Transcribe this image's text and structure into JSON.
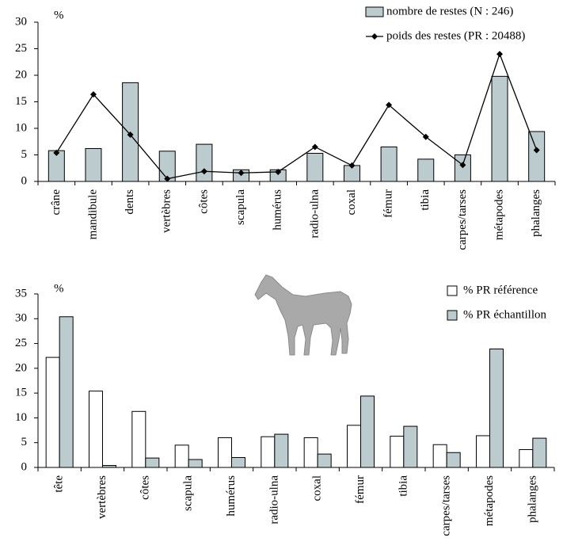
{
  "chart_data": [
    {
      "type": "combo",
      "unit": "%",
      "categories": [
        "crâne",
        "mandibule",
        "dents",
        "vertèbres",
        "côtes",
        "scapula",
        "humérus",
        "radio-ulna",
        "coxal",
        "fémur",
        "tibia",
        "carpes/tarses",
        "métapodes",
        "phalanges"
      ],
      "series": [
        {
          "name": "nombre de restes (N : 246)",
          "kind": "bar",
          "color": "#bccbce",
          "values": [
            5.8,
            6.2,
            18.6,
            5.7,
            7,
            2.2,
            2.2,
            5.3,
            3,
            6.5,
            4.2,
            5,
            19.8,
            9.4
          ]
        },
        {
          "name": "poids des restes (PR : 20488)",
          "kind": "line",
          "color": "#000000",
          "values": [
            5.4,
            16.4,
            8.8,
            0.5,
            1.9,
            1.6,
            1.8,
            6.5,
            3,
            14.4,
            8.4,
            3.1,
            24,
            5.9
          ]
        }
      ],
      "ylim": [
        0,
        30
      ],
      "yticks": [
        0,
        5,
        10,
        15,
        20,
        25,
        30
      ],
      "legend": "top-right"
    },
    {
      "type": "bar",
      "unit": "%",
      "categories": [
        "tête",
        "vertèbres",
        "côtes",
        "scapula",
        "humérus",
        "radio-ulna",
        "coxal",
        "fémur",
        "tibia",
        "carpes/tarses",
        "métapodes",
        "phalanges"
      ],
      "series": [
        {
          "name": "% PR référence",
          "color": "#ffffff",
          "values": [
            22.2,
            15.4,
            11.3,
            4.5,
            6,
            6.2,
            6,
            8.5,
            6.3,
            4.6,
            6.4,
            3.6
          ]
        },
        {
          "name": "% PR échantillon",
          "color": "#bccbce",
          "values": [
            30.4,
            0.4,
            1.9,
            1.6,
            2,
            6.7,
            2.7,
            14.4,
            8.3,
            3,
            23.9,
            5.9
          ]
        }
      ],
      "ylim": [
        0,
        35
      ],
      "yticks": [
        0,
        5,
        10,
        15,
        20,
        25,
        30,
        35
      ],
      "legend": "top-right"
    }
  ]
}
